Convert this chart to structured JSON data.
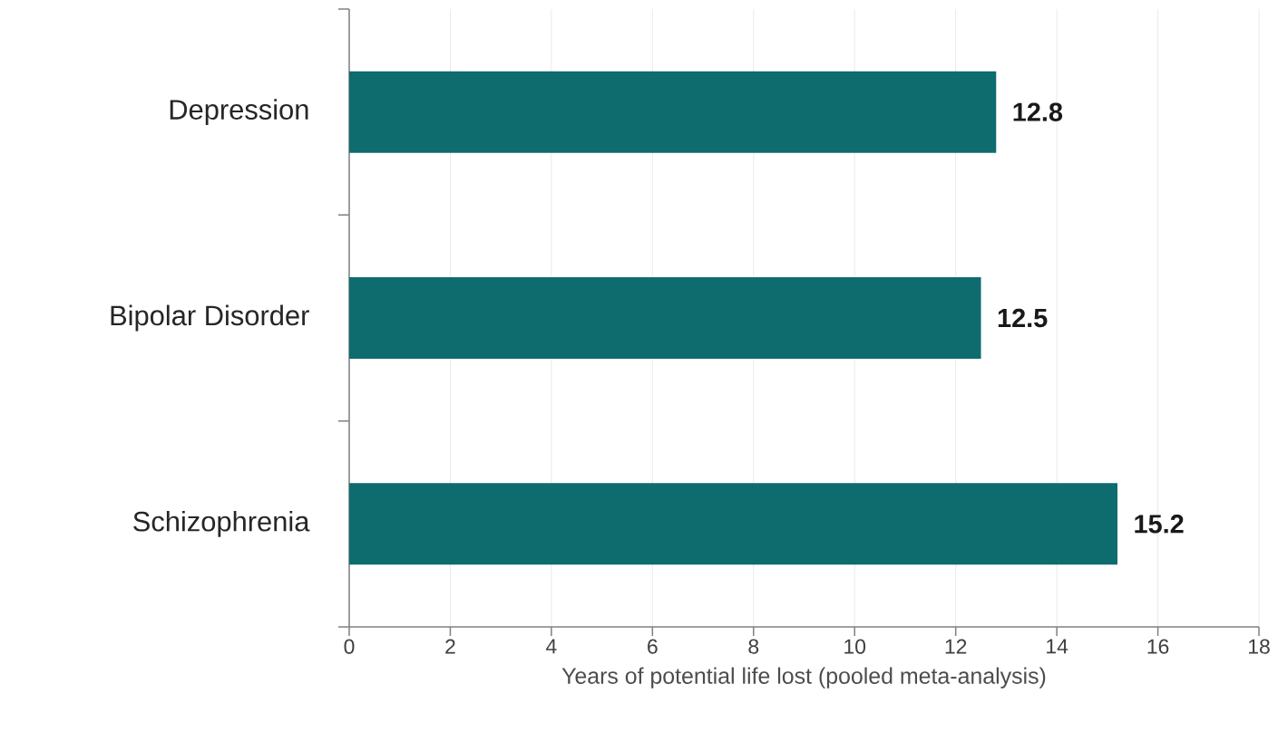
{
  "chart_data": {
    "type": "bar",
    "orientation": "horizontal",
    "xlabel": "Years of potential life lost (pooled meta-analysis)",
    "categories": [
      "Depression",
      "Bipolar Disorder",
      "Schizophrenia"
    ],
    "values": [
      12.8,
      12.5,
      15.2
    ],
    "color": "#0e6b6e",
    "xlim": [
      0,
      18
    ],
    "xticks": [
      0,
      2,
      4,
      6,
      8,
      10,
      12,
      14,
      16,
      18
    ],
    "grid": "x",
    "data_labels": true
  }
}
